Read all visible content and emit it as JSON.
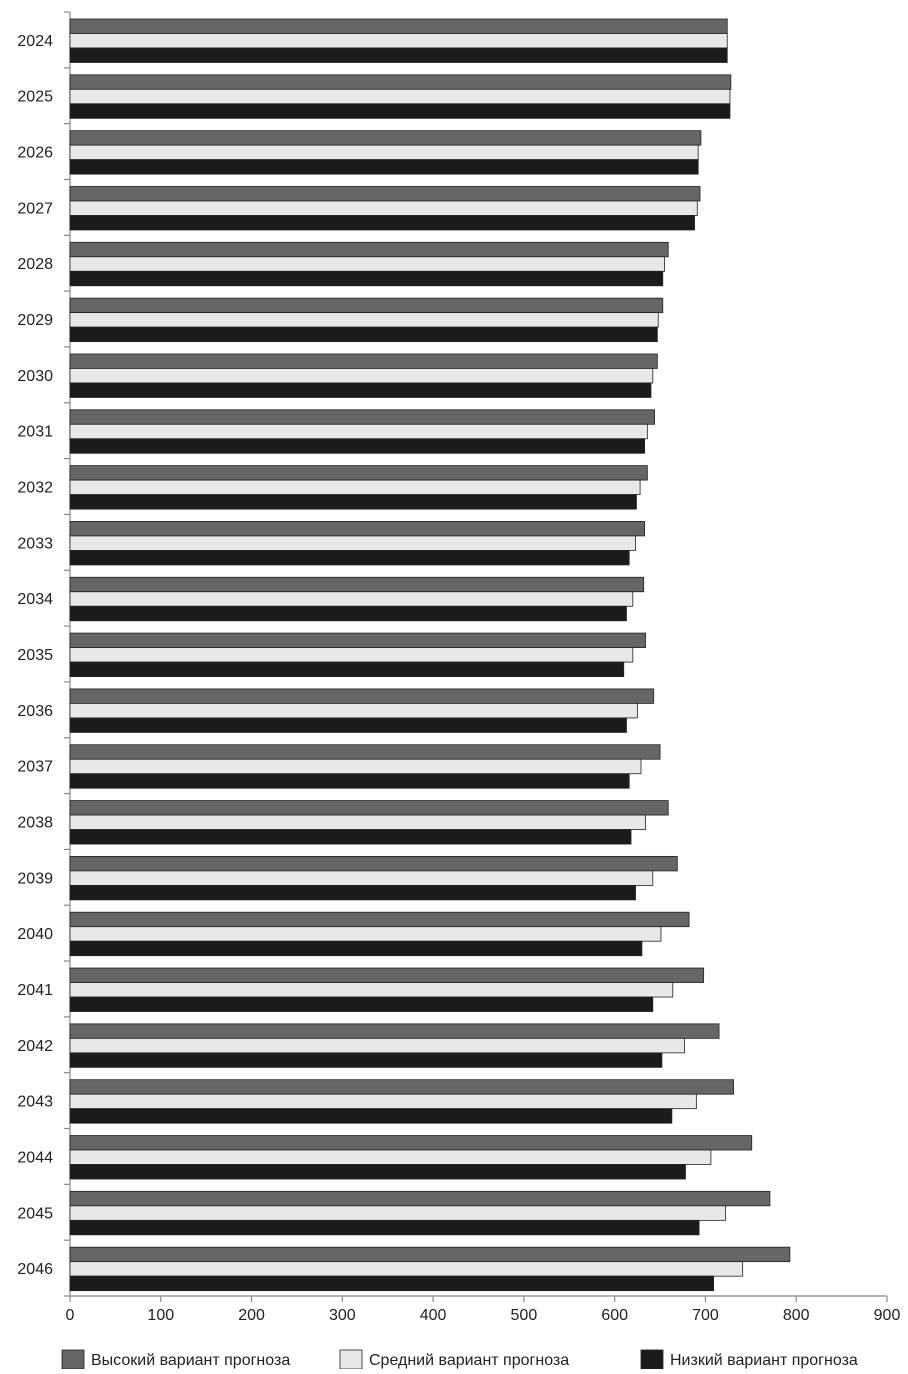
{
  "chart_data": {
    "type": "bar",
    "orientation": "horizontal",
    "categories": [
      "2024",
      "2025",
      "2026",
      "2027",
      "2028",
      "2029",
      "2030",
      "2031",
      "2032",
      "2033",
      "2034",
      "2035",
      "2036",
      "2037",
      "2038",
      "2039",
      "2040",
      "2041",
      "2042",
      "2043",
      "2044",
      "2045",
      "2046"
    ],
    "series": [
      {
        "name": "Высокий вариант прогноза",
        "color": "#666666",
        "values": [
          724,
          728,
          695,
          694,
          659,
          653,
          647,
          644,
          636,
          633,
          632,
          634,
          643,
          650,
          659,
          669,
          682,
          698,
          715,
          731,
          751,
          771,
          793
        ]
      },
      {
        "name": "Средний вариант прогноза",
        "color": "#e8e8e8",
        "values": [
          724,
          727,
          692,
          691,
          655,
          648,
          642,
          636,
          628,
          623,
          620,
          620,
          625,
          629,
          634,
          642,
          651,
          664,
          677,
          690,
          706,
          722,
          741
        ]
      },
      {
        "name": "Низкий вариант прогноза",
        "color": "#1b1b1b",
        "values": [
          724,
          727,
          692,
          688,
          653,
          647,
          640,
          633,
          624,
          616,
          613,
          610,
          613,
          616,
          618,
          623,
          630,
          642,
          652,
          663,
          678,
          693,
          709
        ]
      }
    ],
    "xlim": [
      0,
      900
    ],
    "xticks": [
      "0",
      "100",
      "200",
      "300",
      "400",
      "500",
      "600",
      "700",
      "800",
      "900"
    ],
    "title": "",
    "xlabel": "",
    "ylabel": "",
    "grid": false,
    "legend_position": "bottom"
  }
}
